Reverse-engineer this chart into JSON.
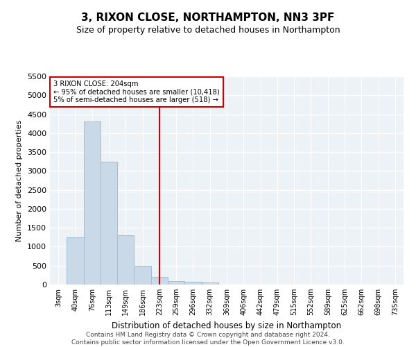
{
  "title": "3, RIXON CLOSE, NORTHAMPTON, NN3 3PF",
  "subtitle": "Size of property relative to detached houses in Northampton",
  "xlabel": "Distribution of detached houses by size in Northampton",
  "ylabel": "Number of detached properties",
  "bar_color": "#c9d9e8",
  "bar_edgecolor": "#a0bdd4",
  "bar_linewidth": 0.7,
  "categories": [
    "3sqm",
    "40sqm",
    "76sqm",
    "113sqm",
    "149sqm",
    "186sqm",
    "223sqm",
    "259sqm",
    "296sqm",
    "332sqm",
    "369sqm",
    "406sqm",
    "442sqm",
    "479sqm",
    "515sqm",
    "552sqm",
    "589sqm",
    "625sqm",
    "662sqm",
    "698sqm",
    "735sqm"
  ],
  "values": [
    0,
    1250,
    4300,
    3250,
    1300,
    500,
    200,
    100,
    75,
    50,
    0,
    0,
    0,
    0,
    0,
    0,
    0,
    0,
    0,
    0,
    0
  ],
  "ylim": [
    0,
    5500
  ],
  "yticks": [
    0,
    500,
    1000,
    1500,
    2000,
    2500,
    3000,
    3500,
    4000,
    4500,
    5000,
    5500
  ],
  "vline_x_index": 6,
  "vline_color": "#cc0000",
  "annotation_box_text": "3 RIXON CLOSE: 204sqm\n← 95% of detached houses are smaller (10,418)\n5% of semi-detached houses are larger (518) →",
  "annotation_box_color": "#cc0000",
  "annotation_box_facecolor": "white",
  "footnote": "Contains HM Land Registry data © Crown copyright and database right 2024.\nContains public sector information licensed under the Open Government Licence v3.0.",
  "background_color": "#edf2f7",
  "grid_color": "white",
  "fig_facecolor": "white",
  "title_fontsize": 11,
  "subtitle_fontsize": 9,
  "xlabel_fontsize": 8.5,
  "ylabel_fontsize": 8,
  "xtick_fontsize": 7,
  "ytick_fontsize": 8,
  "footnote_fontsize": 6.5
}
